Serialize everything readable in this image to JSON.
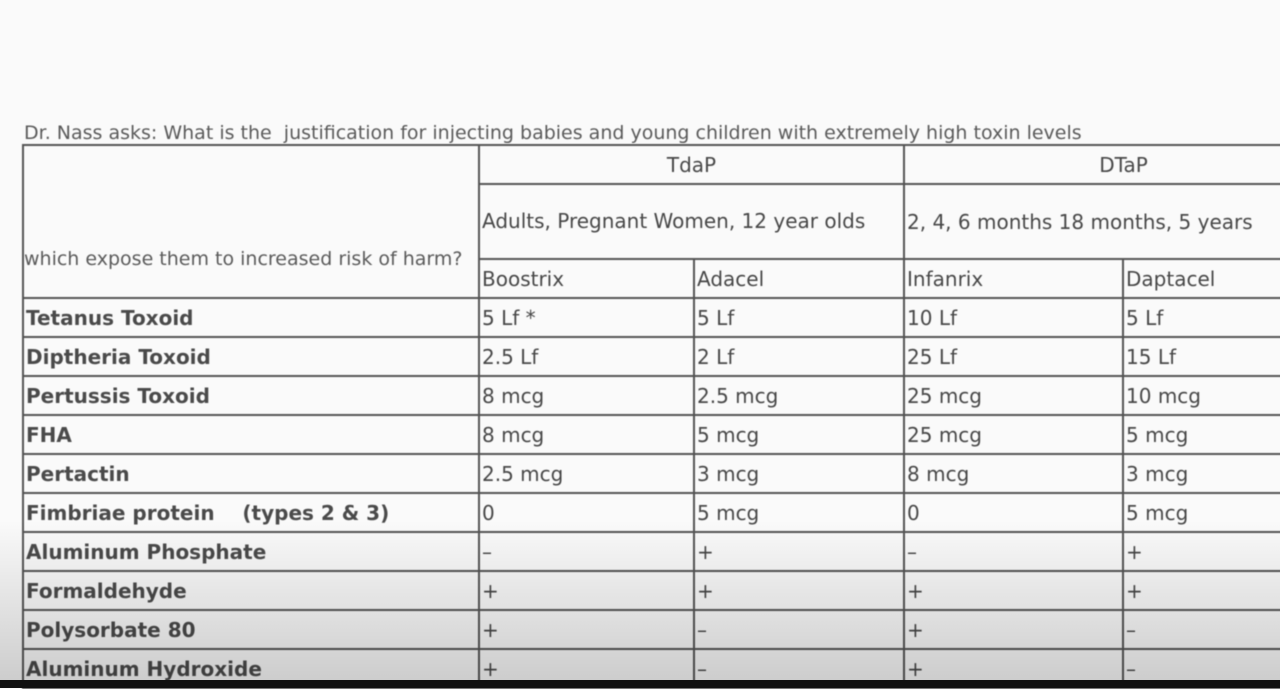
{
  "intro": {
    "lines": [
      "Dr. Nass asks: What is the  justification for injecting babies and young children with extremely high toxin levels",
      "which expose them to increased risk of harm?"
    ]
  },
  "table": {
    "groups": [
      "TdaP",
      "DTaP"
    ],
    "audiences": [
      "Adults, Pregnant Women, 12 year olds",
      "2, 4, 6 months 18 months, 5 years"
    ],
    "products": [
      "Boostrix",
      "Adacel",
      "Infanrix",
      "Daptacel"
    ],
    "rows": [
      [
        "Tetanus Toxoid",
        "5 Lf *",
        "5 Lf",
        "10 Lf",
        "5 Lf"
      ],
      [
        "Diptheria Toxoid",
        "2.5 Lf",
        "2 Lf",
        "25 Lf",
        "15 Lf"
      ],
      [
        "Pertussis Toxoid",
        "8 mcg",
        "2.5 mcg",
        "25 mcg",
        "10 mcg"
      ],
      [
        "FHA",
        "8 mcg",
        "5 mcg",
        "25 mcg",
        "5 mcg"
      ],
      [
        "Pertactin",
        "2.5 mcg",
        "3 mcg",
        "8 mcg",
        "3 mcg"
      ],
      [
        "Fimbriae protein    (types 2 & 3)",
        "0",
        "5 mcg",
        "0",
        "5 mcg"
      ],
      [
        "Aluminum Phosphate",
        "–",
        "+",
        "–",
        "+"
      ],
      [
        "Formaldehyde",
        "+",
        "+",
        "+",
        "+"
      ],
      [
        "Polysorbate 80",
        "+",
        "–",
        "+",
        "–"
      ],
      [
        "Aluminum Hydroxide",
        "+",
        "–",
        "+",
        "–"
      ]
    ]
  }
}
